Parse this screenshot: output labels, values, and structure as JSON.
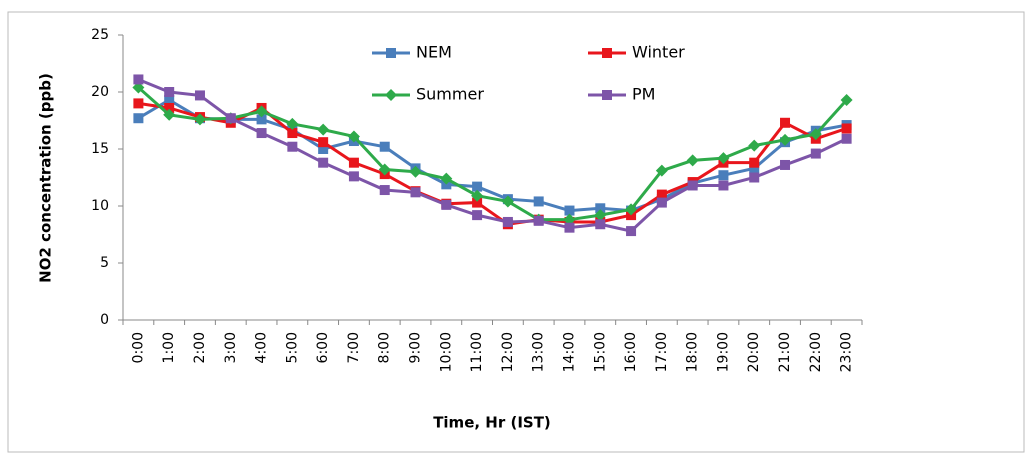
{
  "chart_data": {
    "type": "line",
    "x_label": "Time, Hr (IST)",
    "y_label": "NO2 concentration (ppb)",
    "categories": [
      "0:00",
      "1:00",
      "2:00",
      "3:00",
      "4:00",
      "5:00",
      "6:00",
      "7:00",
      "8:00",
      "9:00",
      "10:00",
      "11:00",
      "12:00",
      "13:00",
      "14:00",
      "15:00",
      "16:00",
      "17:00",
      "18:00",
      "19:00",
      "20:00",
      "21:00",
      "22:00",
      "23:00"
    ],
    "ylim": [
      0,
      25
    ],
    "yticks": [
      0,
      5,
      10,
      15,
      20,
      25
    ],
    "series": [
      {
        "name": "NEM",
        "color": "#4a7ebb",
        "marker": "square",
        "values": [
          17.7,
          19.3,
          17.7,
          17.6,
          17.6,
          16.7,
          15.0,
          15.7,
          15.2,
          13.3,
          11.9,
          11.7,
          10.6,
          10.4,
          9.6,
          9.8,
          9.6,
          10.6,
          12.0,
          12.7,
          13.3,
          15.6,
          16.6,
          17.1
        ]
      },
      {
        "name": "Winter",
        "color": "#e8161c",
        "marker": "square",
        "values": [
          19.0,
          18.6,
          17.8,
          17.3,
          18.6,
          16.4,
          15.6,
          13.8,
          12.8,
          11.3,
          10.2,
          10.3,
          8.4,
          8.8,
          8.6,
          8.6,
          9.2,
          11.0,
          12.1,
          13.8,
          13.8,
          17.3,
          15.9,
          16.8
        ]
      },
      {
        "name": "Summer",
        "color": "#2eaa4a",
        "marker": "diamond",
        "values": [
          20.4,
          18.0,
          17.6,
          17.7,
          18.3,
          17.2,
          16.7,
          16.1,
          13.2,
          13.0,
          12.4,
          10.9,
          10.4,
          8.8,
          8.8,
          9.2,
          9.7,
          13.1,
          14.0,
          14.2,
          15.3,
          15.8,
          16.3,
          19.3
        ]
      },
      {
        "name": "PM",
        "color": "#7d55a8",
        "marker": "square",
        "values": [
          21.1,
          20.0,
          19.7,
          17.7,
          16.4,
          15.2,
          13.8,
          12.6,
          11.4,
          11.2,
          10.1,
          9.2,
          8.6,
          8.7,
          8.1,
          8.4,
          7.8,
          10.3,
          11.8,
          11.8,
          12.5,
          13.6,
          14.6,
          15.9
        ]
      }
    ]
  }
}
